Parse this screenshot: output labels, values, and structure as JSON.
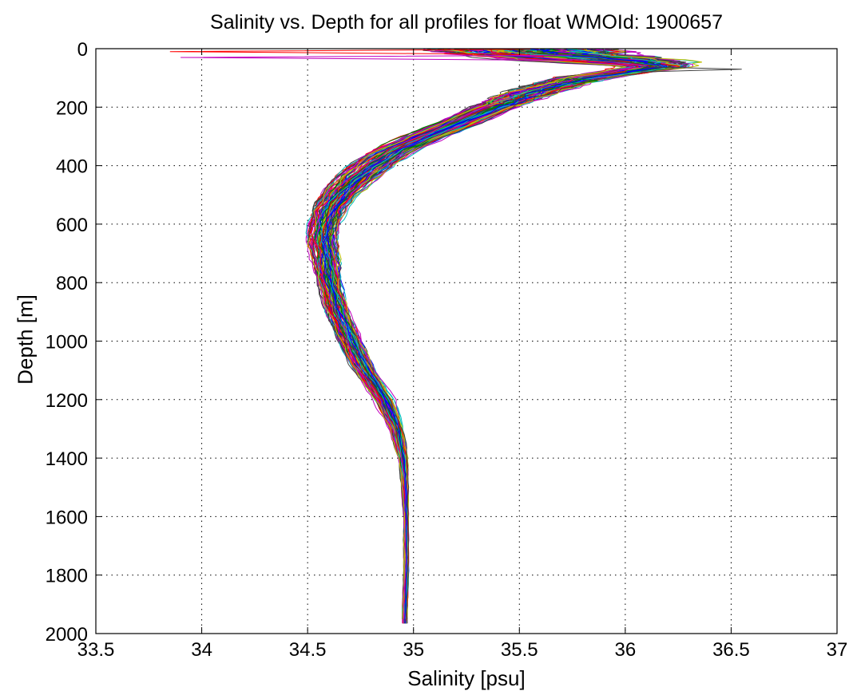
{
  "chart_data": {
    "type": "line",
    "title": "Salinity vs. Depth for all profiles for float WMOId: 1900657",
    "xlabel": "Salinity [psu]",
    "ylabel": "Depth [m]",
    "xlim": [
      33.5,
      37
    ],
    "ylim": [
      0,
      2000
    ],
    "y_reversed": true,
    "grid": true,
    "x_ticks": [
      "33.5",
      "34",
      "34.5",
      "35",
      "35.5",
      "36",
      "36.5",
      "37"
    ],
    "y_ticks": [
      "0",
      "200",
      "400",
      "600",
      "800",
      "1000",
      "1200",
      "1400",
      "1600",
      "1800",
      "2000"
    ],
    "profile_count_approx": 120,
    "mean_profile": {
      "depth": [
        0,
        20,
        40,
        60,
        80,
        100,
        150,
        200,
        250,
        300,
        350,
        400,
        450,
        500,
        550,
        600,
        650,
        700,
        750,
        800,
        850,
        900,
        950,
        1000,
        1100,
        1200,
        1300,
        1400,
        1500,
        1600,
        1700,
        1800,
        1900,
        1980
      ],
      "salinity": [
        35.5,
        35.6,
        35.9,
        36.15,
        36.0,
        35.8,
        35.55,
        35.38,
        35.22,
        35.05,
        34.9,
        34.8,
        34.72,
        34.65,
        34.6,
        34.58,
        34.57,
        34.58,
        34.59,
        34.6,
        34.62,
        34.64,
        34.67,
        34.7,
        34.77,
        34.86,
        34.92,
        34.95,
        34.96,
        34.965,
        34.965,
        34.965,
        34.96,
        34.96
      ]
    },
    "profile_spread_psu": {
      "depth": [
        0,
        20,
        40,
        60,
        80,
        100,
        150,
        200,
        300,
        400,
        500,
        600,
        700,
        800,
        900,
        1000,
        1200,
        1400,
        1600,
        2000
      ],
      "halfwidth": [
        0.45,
        0.4,
        0.35,
        0.15,
        0.12,
        0.12,
        0.12,
        0.1,
        0.1,
        0.1,
        0.08,
        0.07,
        0.06,
        0.05,
        0.05,
        0.05,
        0.04,
        0.02,
        0.01,
        0.01
      ]
    },
    "notable_extremes": [
      {
        "depth": 10,
        "salinity": 33.85
      },
      {
        "depth": 30,
        "salinity": 33.9
      },
      {
        "depth": 70,
        "salinity": 36.55
      },
      {
        "depth": 110,
        "salinity": 35.87
      }
    ],
    "series_colors": [
      "#0000ff",
      "#008000",
      "#ff0000",
      "#00bfbf",
      "#bf00bf",
      "#bfbf00",
      "#404040"
    ]
  }
}
